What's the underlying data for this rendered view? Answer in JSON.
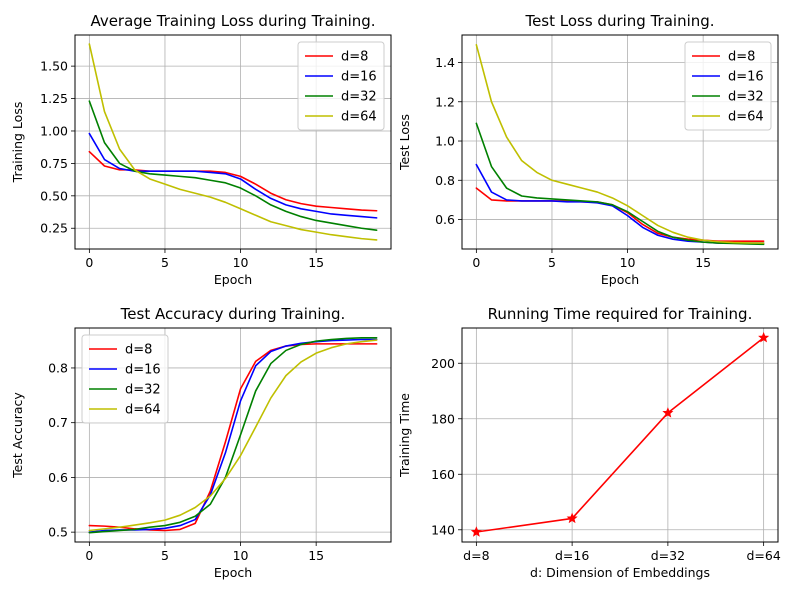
{
  "chart_data": [
    {
      "type": "line",
      "title": "Average Training Loss during Training.",
      "xlabel": "Epoch",
      "ylabel": "Training Loss",
      "xlim": [
        -0.95,
        19.95
      ],
      "ylim": [
        0.09,
        1.74
      ],
      "xticks": [
        0,
        5,
        10,
        15
      ],
      "xtick_labels": [
        "0",
        "5",
        "10",
        "15"
      ],
      "yticks": [
        0.25,
        0.5,
        0.75,
        1.0,
        1.25,
        1.5
      ],
      "ytick_labels": [
        "0.25",
        "0.50",
        "0.75",
        "1.00",
        "1.25",
        "1.50"
      ],
      "grid": true,
      "legend": "upper right",
      "x": [
        0,
        1,
        2,
        3,
        4,
        5,
        6,
        7,
        8,
        9,
        10,
        11,
        12,
        13,
        14,
        15,
        16,
        17,
        18,
        19
      ],
      "series": [
        {
          "name": "d=8",
          "color": "#ff0000",
          "values": [
            0.84,
            0.73,
            0.7,
            0.7,
            0.69,
            0.69,
            0.69,
            0.69,
            0.69,
            0.68,
            0.65,
            0.59,
            0.52,
            0.47,
            0.44,
            0.42,
            0.41,
            0.4,
            0.39,
            0.385
          ]
        },
        {
          "name": "d=16",
          "color": "#0000ff",
          "values": [
            0.98,
            0.78,
            0.71,
            0.69,
            0.69,
            0.69,
            0.69,
            0.69,
            0.68,
            0.67,
            0.63,
            0.55,
            0.48,
            0.43,
            0.4,
            0.38,
            0.36,
            0.35,
            0.34,
            0.33
          ]
        },
        {
          "name": "d=32",
          "color": "#008000",
          "values": [
            1.23,
            0.91,
            0.75,
            0.69,
            0.67,
            0.66,
            0.65,
            0.64,
            0.62,
            0.6,
            0.56,
            0.5,
            0.43,
            0.38,
            0.34,
            0.31,
            0.29,
            0.27,
            0.25,
            0.235
          ]
        },
        {
          "name": "d=64",
          "color": "#bfbf00",
          "values": [
            1.67,
            1.15,
            0.86,
            0.7,
            0.63,
            0.59,
            0.55,
            0.52,
            0.49,
            0.45,
            0.4,
            0.35,
            0.3,
            0.27,
            0.24,
            0.22,
            0.2,
            0.185,
            0.17,
            0.16
          ]
        }
      ]
    },
    {
      "type": "line",
      "title": "Test Loss during Training.",
      "xlabel": "Epoch",
      "ylabel": "Test Loss",
      "xlim": [
        -0.95,
        19.95
      ],
      "ylim": [
        0.45,
        1.54
      ],
      "xticks": [
        0,
        5,
        10,
        15
      ],
      "xtick_labels": [
        "0",
        "5",
        "10",
        "15"
      ],
      "yticks": [
        0.6,
        0.8,
        1.0,
        1.2,
        1.4
      ],
      "ytick_labels": [
        "0.6",
        "0.8",
        "1.0",
        "1.2",
        "1.4"
      ],
      "grid": true,
      "legend": "upper right",
      "x": [
        0,
        1,
        2,
        3,
        4,
        5,
        6,
        7,
        8,
        9,
        10,
        11,
        12,
        13,
        14,
        15,
        16,
        17,
        18,
        19
      ],
      "series": [
        {
          "name": "d=8",
          "color": "#ff0000",
          "values": [
            0.76,
            0.7,
            0.695,
            0.695,
            0.695,
            0.695,
            0.695,
            0.69,
            0.69,
            0.675,
            0.635,
            0.575,
            0.53,
            0.51,
            0.5,
            0.495,
            0.49,
            0.49,
            0.49,
            0.49
          ]
        },
        {
          "name": "d=16",
          "color": "#0000ff",
          "values": [
            0.88,
            0.74,
            0.7,
            0.695,
            0.695,
            0.695,
            0.69,
            0.69,
            0.685,
            0.67,
            0.62,
            0.56,
            0.52,
            0.5,
            0.49,
            0.485,
            0.48,
            0.48,
            0.48,
            0.48
          ]
        },
        {
          "name": "d=32",
          "color": "#008000",
          "values": [
            1.09,
            0.87,
            0.76,
            0.72,
            0.71,
            0.705,
            0.7,
            0.695,
            0.69,
            0.675,
            0.64,
            0.59,
            0.54,
            0.51,
            0.495,
            0.485,
            0.48,
            0.478,
            0.476,
            0.474
          ]
        },
        {
          "name": "d=64",
          "color": "#bfbf00",
          "values": [
            1.49,
            1.2,
            1.02,
            0.9,
            0.84,
            0.8,
            0.78,
            0.76,
            0.74,
            0.71,
            0.67,
            0.62,
            0.57,
            0.535,
            0.51,
            0.495,
            0.487,
            0.483,
            0.481,
            0.48
          ]
        }
      ]
    },
    {
      "type": "line",
      "title": "Test Accuracy during Training.",
      "xlabel": "Epoch",
      "ylabel": "Test Accuracy",
      "xlim": [
        -0.95,
        19.95
      ],
      "ylim": [
        0.482,
        0.873
      ],
      "xticks": [
        0,
        5,
        10,
        15
      ],
      "xtick_labels": [
        "0",
        "5",
        "10",
        "15"
      ],
      "yticks": [
        0.5,
        0.6,
        0.7,
        0.8
      ],
      "ytick_labels": [
        "0.5",
        "0.6",
        "0.7",
        "0.8"
      ],
      "grid": true,
      "legend": "upper left",
      "x": [
        0,
        1,
        2,
        3,
        4,
        5,
        6,
        7,
        8,
        9,
        10,
        11,
        12,
        13,
        14,
        15,
        16,
        17,
        18,
        19
      ],
      "series": [
        {
          "name": "d=8",
          "color": "#ff0000",
          "values": [
            0.512,
            0.511,
            0.509,
            0.506,
            0.504,
            0.503,
            0.505,
            0.516,
            0.575,
            0.665,
            0.762,
            0.812,
            0.832,
            0.84,
            0.843,
            0.844,
            0.844,
            0.844,
            0.844,
            0.844
          ]
        },
        {
          "name": "d=16",
          "color": "#0000ff",
          "values": [
            0.5,
            0.503,
            0.504,
            0.504,
            0.505,
            0.507,
            0.512,
            0.523,
            0.568,
            0.645,
            0.74,
            0.804,
            0.83,
            0.84,
            0.845,
            0.848,
            0.85,
            0.851,
            0.852,
            0.852
          ]
        },
        {
          "name": "d=32",
          "color": "#008000",
          "values": [
            0.499,
            0.501,
            0.503,
            0.505,
            0.509,
            0.512,
            0.518,
            0.529,
            0.551,
            0.6,
            0.678,
            0.758,
            0.808,
            0.832,
            0.843,
            0.849,
            0.852,
            0.854,
            0.855,
            0.855
          ]
        },
        {
          "name": "d=64",
          "color": "#bfbf00",
          "values": [
            0.503,
            0.506,
            0.509,
            0.513,
            0.517,
            0.522,
            0.531,
            0.545,
            0.566,
            0.598,
            0.64,
            0.692,
            0.745,
            0.786,
            0.811,
            0.827,
            0.837,
            0.844,
            0.848,
            0.851
          ]
        }
      ]
    },
    {
      "type": "line",
      "title": "Running Time required for Training.",
      "xlabel": "d: Dimension of Embeddings",
      "ylabel": "Training Time",
      "xlim": [
        -0.15,
        3.15
      ],
      "ylim": [
        135.6,
        212.7
      ],
      "xticks": [
        0,
        1,
        2,
        3
      ],
      "xtick_labels": [
        "d=8",
        "d=16",
        "d=32",
        "d=64"
      ],
      "yticks": [
        140,
        160,
        180,
        200
      ],
      "ytick_labels": [
        "140",
        "160",
        "180",
        "200"
      ],
      "grid": true,
      "legend": "none",
      "marker": "star",
      "categories": [
        "d=8",
        "d=16",
        "d=32",
        "d=64"
      ],
      "x": [
        0,
        1,
        2,
        3
      ],
      "series": [
        {
          "color": "#ff0000",
          "values": [
            139.2,
            144.1,
            182.1,
            209.2
          ]
        }
      ]
    }
  ]
}
